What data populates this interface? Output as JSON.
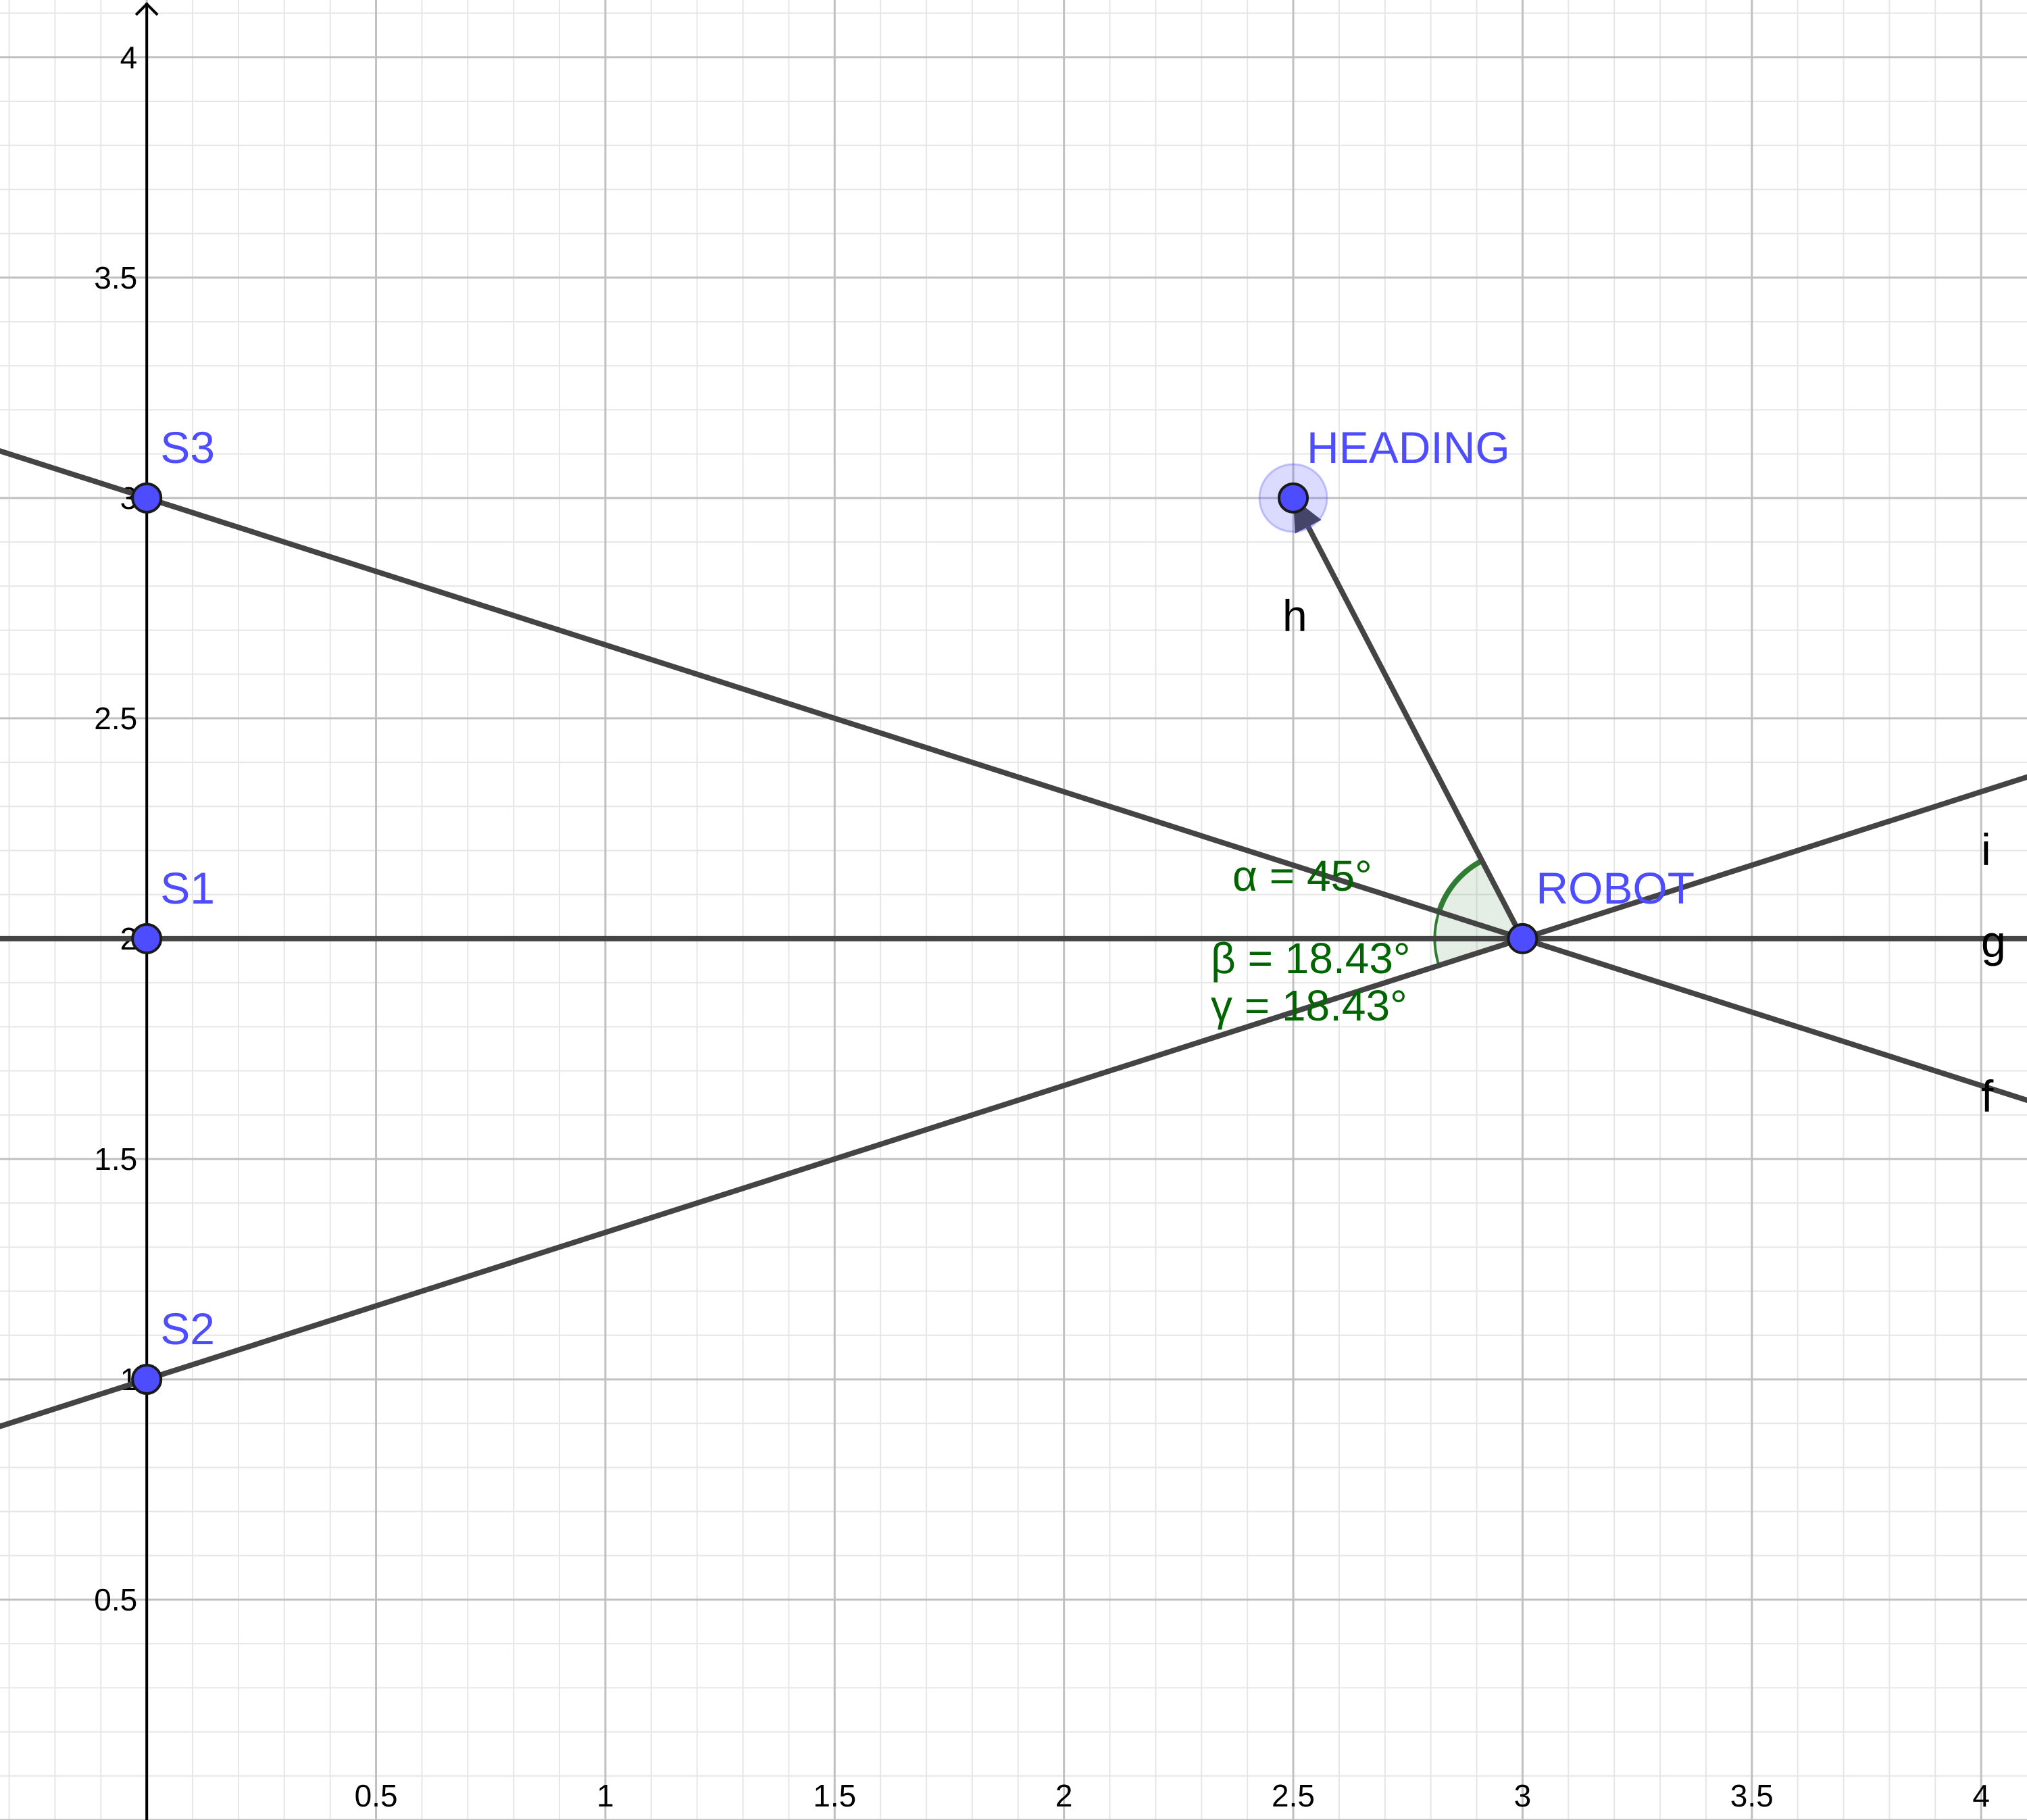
{
  "colors": {
    "background": "#ffffff",
    "grid_major": "#c0c0c0",
    "grid_minor": "#e6e6e6",
    "axis": "#000000",
    "line": "#444444",
    "point_fill": "#4d4dff",
    "point_label": "#4d4dff",
    "angle_text": "#006400",
    "angle_fill": "#2e7d32",
    "angle_stroke": "#2e7d32"
  },
  "view": {
    "x_range": [
      -0.32,
      4.1
    ],
    "y_range": [
      0.0,
      4.13
    ],
    "grid_step": 0.5,
    "minor_step": 0.1
  },
  "axes": {
    "x_ticks": [
      {
        "value": 0.5,
        "label": "0.5"
      },
      {
        "value": 1,
        "label": "1"
      },
      {
        "value": 1.5,
        "label": "1.5"
      },
      {
        "value": 2,
        "label": "2"
      },
      {
        "value": 2.5,
        "label": "2.5"
      },
      {
        "value": 3,
        "label": "3"
      },
      {
        "value": 3.5,
        "label": "3.5"
      },
      {
        "value": 4,
        "label": "4"
      }
    ],
    "y_ticks": [
      {
        "value": 0.5,
        "label": "0.5"
      },
      {
        "value": 1,
        "label": "1"
      },
      {
        "value": 1.5,
        "label": "1.5"
      },
      {
        "value": 2,
        "label": "2"
      },
      {
        "value": 2.5,
        "label": "2.5"
      },
      {
        "value": 3,
        "label": "3"
      },
      {
        "value": 3.5,
        "label": "3.5"
      },
      {
        "value": 4,
        "label": "4"
      }
    ]
  },
  "points": [
    {
      "id": "s3",
      "label": "S3",
      "x": 0,
      "y": 3,
      "highlighted": false
    },
    {
      "id": "s1",
      "label": "S1",
      "x": 0,
      "y": 2,
      "highlighted": false
    },
    {
      "id": "s2",
      "label": "S2",
      "x": 0,
      "y": 1,
      "highlighted": false
    },
    {
      "id": "robot",
      "label": "ROBOT",
      "x": 3,
      "y": 2,
      "highlighted": false
    },
    {
      "id": "heading",
      "label": "HEADING",
      "x": 2.5,
      "y": 3,
      "highlighted": true
    }
  ],
  "lines": [
    {
      "id": "f",
      "label": "f",
      "through": [
        [
          0,
          3
        ],
        [
          3,
          2
        ]
      ]
    },
    {
      "id": "g",
      "label": "g",
      "through": [
        [
          0,
          2
        ],
        [
          3,
          2
        ]
      ]
    },
    {
      "id": "i",
      "label": "i",
      "through": [
        [
          0,
          1
        ],
        [
          3,
          2
        ]
      ]
    }
  ],
  "vector": {
    "id": "h",
    "label": "h",
    "from": [
      3,
      2
    ],
    "to": [
      2.5,
      3
    ]
  },
  "angles": [
    {
      "id": "alpha",
      "label": "α = 45°"
    },
    {
      "id": "beta",
      "label": "β = 18.43°"
    },
    {
      "id": "gamma",
      "label": "γ = 18.43°"
    }
  ]
}
